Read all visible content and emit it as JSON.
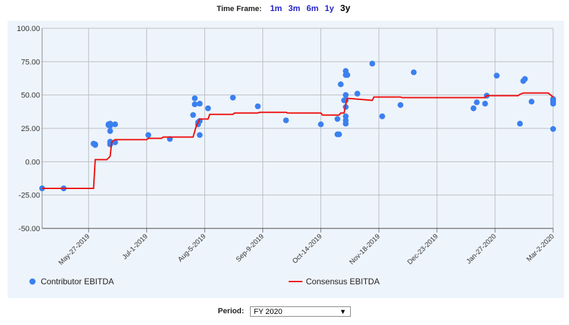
{
  "timeframe": {
    "label": "Time Frame:",
    "options": [
      "1m",
      "3m",
      "6m",
      "1y",
      "3y"
    ],
    "selected": "3y"
  },
  "period": {
    "label": "Period:",
    "value": "FY 2020",
    "arrow": "▼"
  },
  "colors": {
    "scatter": "#3a80f0",
    "line": "#ee1111",
    "background": "#eef4fb",
    "grid": "#b9bec4"
  },
  "chart_data": {
    "type": "line",
    "ylim": [
      -50,
      100
    ],
    "yticks": [
      "100.00",
      "75.00",
      "50.00",
      "25.00",
      "0.00",
      "-25.00",
      "-50.00"
    ],
    "ytick_values": [
      100,
      75,
      50,
      25,
      0,
      -25,
      -50
    ],
    "xlim": [
      "2019-04-29",
      "2020-03-02"
    ],
    "xticks": [
      "May-27-2019",
      "Jul-1-2019",
      "Aug-5-2019",
      "Sep-9-2019",
      "Oct-14-2019",
      "Nov-18-2019",
      "Dec-23-2019",
      "Jan-27-2020",
      "Mar-2-2020"
    ],
    "xtick_dates": [
      "2019-05-27",
      "2019-07-01",
      "2019-08-05",
      "2019-09-09",
      "2019-10-14",
      "2019-11-18",
      "2019-12-23",
      "2020-01-27",
      "2020-03-02"
    ],
    "grid": true,
    "legend_position": "bottom",
    "series": [
      {
        "name": "Contributor EBITDA",
        "type": "scatter",
        "points": [
          [
            "2019-04-29",
            -20
          ],
          [
            "2019-05-12",
            -20
          ],
          [
            "2019-05-30",
            13.5
          ],
          [
            "2019-05-31",
            13
          ],
          [
            "2019-05-31",
            12.5
          ],
          [
            "2019-06-08",
            28
          ],
          [
            "2019-06-08",
            27.5
          ],
          [
            "2019-06-09",
            27
          ],
          [
            "2019-06-09",
            28.5
          ],
          [
            "2019-06-09",
            23
          ],
          [
            "2019-06-09",
            15
          ],
          [
            "2019-06-09",
            13.5
          ],
          [
            "2019-06-09",
            13
          ],
          [
            "2019-06-12",
            14.5
          ],
          [
            "2019-06-12",
            28
          ],
          [
            "2019-07-02",
            20
          ],
          [
            "2019-07-15",
            17
          ],
          [
            "2019-07-29",
            35
          ],
          [
            "2019-07-30",
            47.5
          ],
          [
            "2019-07-30",
            43
          ],
          [
            "2019-08-01",
            28
          ],
          [
            "2019-08-01",
            29.5
          ],
          [
            "2019-08-02",
            30.5
          ],
          [
            "2019-08-02",
            43.5
          ],
          [
            "2019-08-02",
            20
          ],
          [
            "2019-08-07",
            40
          ],
          [
            "2019-08-22",
            48
          ],
          [
            "2019-09-06",
            41.5
          ],
          [
            "2019-09-23",
            31
          ],
          [
            "2019-10-14",
            28
          ],
          [
            "2019-10-24",
            32
          ],
          [
            "2019-10-24",
            20.5
          ],
          [
            "2019-10-25",
            20.5
          ],
          [
            "2019-10-26",
            58
          ],
          [
            "2019-10-28",
            46
          ],
          [
            "2019-10-29",
            65
          ],
          [
            "2019-10-29",
            68
          ],
          [
            "2019-10-29",
            50
          ],
          [
            "2019-10-29",
            46
          ],
          [
            "2019-10-29",
            41
          ],
          [
            "2019-10-29",
            34
          ],
          [
            "2019-10-29",
            31
          ],
          [
            "2019-10-29",
            28.5
          ],
          [
            "2019-10-30",
            65
          ],
          [
            "2019-11-05",
            51
          ],
          [
            "2019-11-14",
            73.5
          ],
          [
            "2019-11-20",
            34
          ],
          [
            "2019-12-01",
            42.5
          ],
          [
            "2019-12-09",
            67
          ],
          [
            "2020-01-14",
            40
          ],
          [
            "2020-01-16",
            44.5
          ],
          [
            "2020-01-21",
            43.5
          ],
          [
            "2020-01-22",
            49.5
          ],
          [
            "2020-01-28",
            64.5
          ],
          [
            "2020-02-11",
            28.5
          ],
          [
            "2020-02-13",
            60.5
          ],
          [
            "2020-02-14",
            62
          ],
          [
            "2020-02-18",
            45
          ],
          [
            "2020-03-02",
            47
          ],
          [
            "2020-03-02",
            46
          ],
          [
            "2020-03-02",
            45
          ],
          [
            "2020-03-02",
            43.5
          ],
          [
            "2020-03-02",
            24.5
          ]
        ]
      },
      {
        "name": "Consensus EBITDA",
        "type": "line",
        "points": [
          [
            "2019-04-29",
            -20
          ],
          [
            "2019-05-30",
            -20
          ],
          [
            "2019-05-31",
            1.5
          ],
          [
            "2019-06-07",
            1.5
          ],
          [
            "2019-06-09",
            4
          ],
          [
            "2019-06-10",
            15
          ],
          [
            "2019-06-12",
            16.5
          ],
          [
            "2019-07-01",
            16.5
          ],
          [
            "2019-07-02",
            17.5
          ],
          [
            "2019-07-10",
            17.5
          ],
          [
            "2019-07-11",
            18.5
          ],
          [
            "2019-07-29",
            18.5
          ],
          [
            "2019-07-31",
            27
          ],
          [
            "2019-08-01",
            29
          ],
          [
            "2019-08-02",
            32
          ],
          [
            "2019-08-07",
            32
          ],
          [
            "2019-08-08",
            35.5
          ],
          [
            "2019-08-22",
            35.5
          ],
          [
            "2019-08-23",
            36.5
          ],
          [
            "2019-09-06",
            36.5
          ],
          [
            "2019-09-07",
            37
          ],
          [
            "2019-09-23",
            37
          ],
          [
            "2019-09-24",
            36.5
          ],
          [
            "2019-10-14",
            36.5
          ],
          [
            "2019-10-15",
            35
          ],
          [
            "2019-10-25",
            35
          ],
          [
            "2019-10-26",
            36.5
          ],
          [
            "2019-10-28",
            36.5
          ],
          [
            "2019-10-29",
            43
          ],
          [
            "2019-10-30",
            47.5
          ],
          [
            "2019-11-14",
            46
          ],
          [
            "2019-11-15",
            48.5
          ],
          [
            "2019-12-01",
            48.5
          ],
          [
            "2019-12-02",
            48
          ],
          [
            "2020-01-21",
            48
          ],
          [
            "2020-01-22",
            49.5
          ],
          [
            "2020-02-10",
            49.5
          ],
          [
            "2020-02-11",
            50.5
          ],
          [
            "2020-02-13",
            51.5
          ],
          [
            "2020-02-28",
            51.5
          ],
          [
            "2020-03-02",
            48.5
          ]
        ]
      }
    ]
  }
}
